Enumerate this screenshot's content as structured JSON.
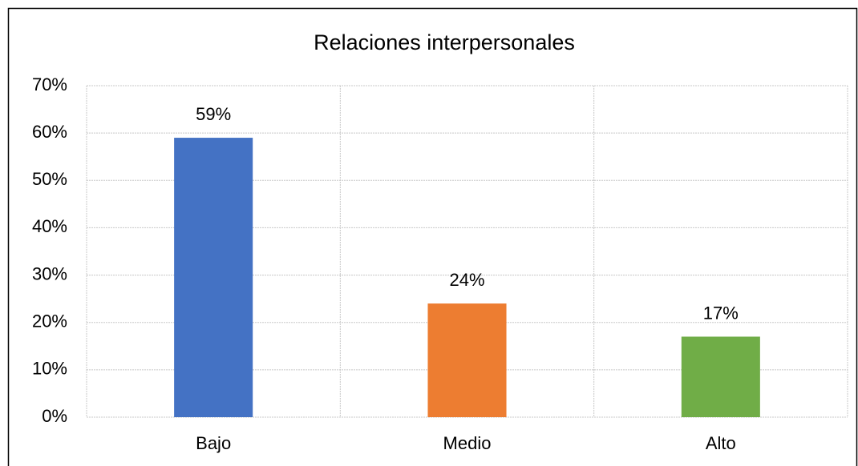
{
  "chart_data": {
    "type": "bar",
    "title": "Relaciones interpersonales",
    "categories": [
      "Bajo",
      "Medio",
      "Alto"
    ],
    "values": [
      59,
      24,
      17
    ],
    "value_labels": [
      "59%",
      "24%",
      "17%"
    ],
    "colors": [
      "#4472c4",
      "#ed7d31",
      "#70ad47"
    ],
    "ylim": [
      0,
      70
    ],
    "yticks": [
      {
        "value": 0,
        "label": "0%"
      },
      {
        "value": 10,
        "label": "10%"
      },
      {
        "value": 20,
        "label": "20%"
      },
      {
        "value": 30,
        "label": "30%"
      },
      {
        "value": 40,
        "label": "40%"
      },
      {
        "value": 50,
        "label": "50%"
      },
      {
        "value": 60,
        "label": "60%"
      },
      {
        "value": 70,
        "label": "70%"
      }
    ],
    "grid": true
  }
}
